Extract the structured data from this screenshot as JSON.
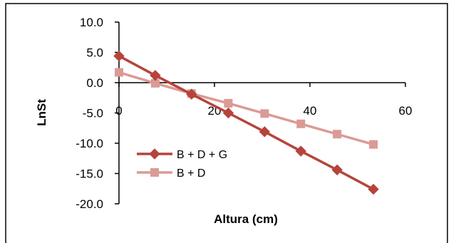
{
  "chart_data": {
    "type": "line",
    "title": "",
    "xlabel": "Altura (cm)",
    "ylabel": "LnSt",
    "xlim": [
      0,
      60
    ],
    "ylim": [
      -20,
      10
    ],
    "x_ticks": [
      0,
      20,
      40,
      60
    ],
    "y_ticks": [
      10,
      5,
      0,
      -5,
      -10,
      -15,
      -20
    ],
    "x_tick_labels": [
      "0",
      "20",
      "40",
      "60"
    ],
    "y_tick_labels": [
      "10.0",
      "5.0",
      "0.0",
      "-5.0",
      "-10.0",
      "-15.0",
      "-20.0"
    ],
    "grid": false,
    "legend_position": "left",
    "series": [
      {
        "name": "B + D + G",
        "marker": "diamond",
        "color": "#b5443c",
        "x": [
          0,
          7.6,
          15.2,
          22.9,
          30.5,
          38.1,
          45.7,
          53.3
        ],
        "y": [
          4.4,
          1.2,
          -1.9,
          -5.0,
          -8.1,
          -11.3,
          -14.4,
          -17.6
        ]
      },
      {
        "name": "B + D",
        "marker": "square",
        "color": "#db9a96",
        "x": [
          0,
          7.6,
          15.2,
          22.9,
          30.5,
          38.1,
          45.7,
          53.3
        ],
        "y": [
          1.7,
          -0.1,
          -1.8,
          -3.4,
          -5.1,
          -6.8,
          -8.5,
          -10.2
        ]
      }
    ]
  }
}
